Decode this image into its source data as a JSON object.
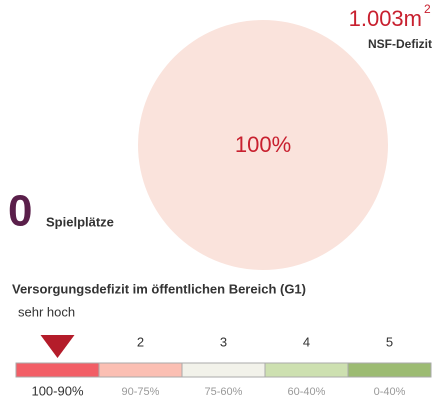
{
  "deficit": {
    "amount": "1.003m",
    "exponent": "2",
    "label": "NSF-Defizit"
  },
  "circle": {
    "text": "100%",
    "color": "#fae3dc"
  },
  "playgrounds": {
    "count": "0",
    "label": "Spielplätze"
  },
  "scale": {
    "title": "Versorgungsdefizit im öffentlichen Bereich (G1)",
    "selected": 0,
    "segments": [
      {
        "level": "sehr hoch",
        "range": "100-90%",
        "color": "#f25e66"
      },
      {
        "level": "2",
        "range": "90-75%",
        "color": "#fbbfb3"
      },
      {
        "level": "3",
        "range": "75-60%",
        "color": "#f2f2ea"
      },
      {
        "level": "4",
        "range": "60-40%",
        "color": "#cde0b0"
      },
      {
        "level": "5",
        "range": "0-40%",
        "color": "#9cbb72"
      }
    ]
  }
}
